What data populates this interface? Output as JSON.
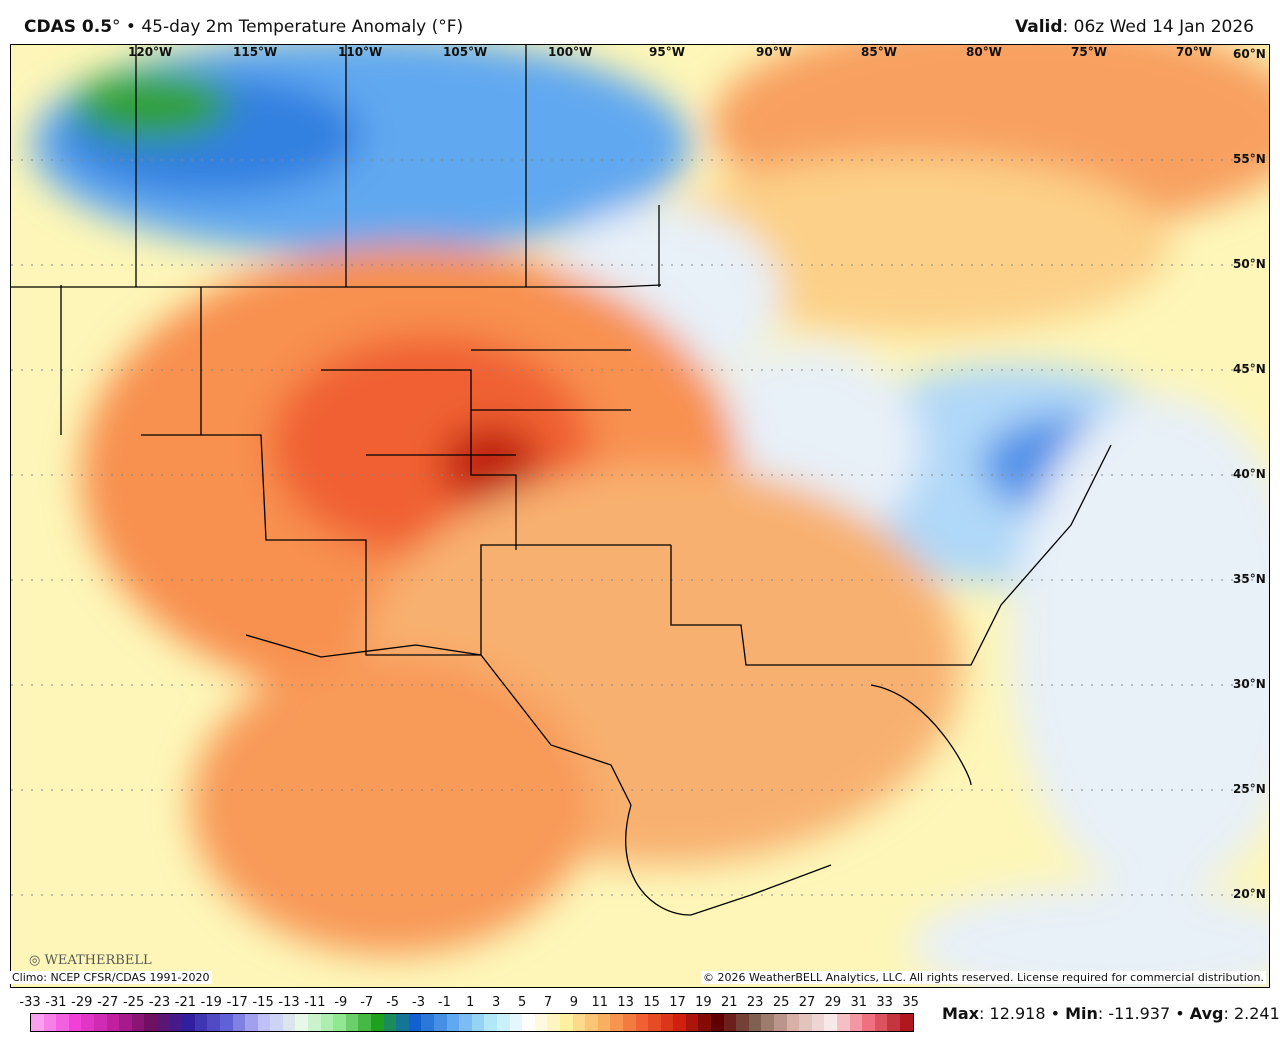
{
  "header": {
    "model": "CDAS 0.5",
    "deg": "°",
    "title_rest": " • 45-day 2m Temperature Anomaly (°F)",
    "valid_label": "Valid",
    "valid_value": ": 06z Wed 14 Jan 2026"
  },
  "map": {
    "lon_labels": [
      "120°W",
      "115°W",
      "110°W",
      "105°W",
      "100°W",
      "95°W",
      "90°W",
      "85°W",
      "80°W",
      "75°W",
      "70°W"
    ],
    "lat_labels": [
      "60°N",
      "55°N",
      "50°N",
      "45°N",
      "40°N",
      "35°N",
      "30°N",
      "25°N",
      "20°N"
    ],
    "logo_text": "WeatherBELL"
  },
  "footer": {
    "climo": "Climo: NCEP CFSR/CDAS 1991-2020",
    "copyright": "© 2026 WeatherBELL Analytics, LLC. All rights reserved. License required for commercial distribution."
  },
  "colorbar": {
    "ticks": [
      "-33",
      "-31",
      "-29",
      "-27",
      "-25",
      "-23",
      "-21",
      "-19",
      "-17",
      "-15",
      "-13",
      "-11",
      "-9",
      "-7",
      "-5",
      "-3",
      "-1",
      "1",
      "3",
      "5",
      "7",
      "9",
      "11",
      "13",
      "15",
      "17",
      "19",
      "21",
      "23",
      "25",
      "27",
      "29",
      "31",
      "33",
      "35"
    ],
    "stops": [
      "#f9a0ee",
      "#f040d8",
      "#c020a0",
      "#701060",
      "#3020a0",
      "#6060d8",
      "#c0c0f8",
      "#e8f8e8",
      "#90e890",
      "#20a020",
      "#1060d0",
      "#60a8f0",
      "#b0e8f8",
      "#ffffff",
      "#fff0a0",
      "#f8b060",
      "#f06030",
      "#d02010",
      "#600000",
      "#806050",
      "#d8b0a8",
      "#f8e8e8",
      "#f07080",
      "#b01820"
    ]
  },
  "stats": {
    "max_label": "Max",
    "max_value": ": 12.918 • ",
    "min_label": "Min",
    "min_value": ": -11.937 • ",
    "avg_label": "Avg",
    "avg_value": ": 2.241"
  }
}
